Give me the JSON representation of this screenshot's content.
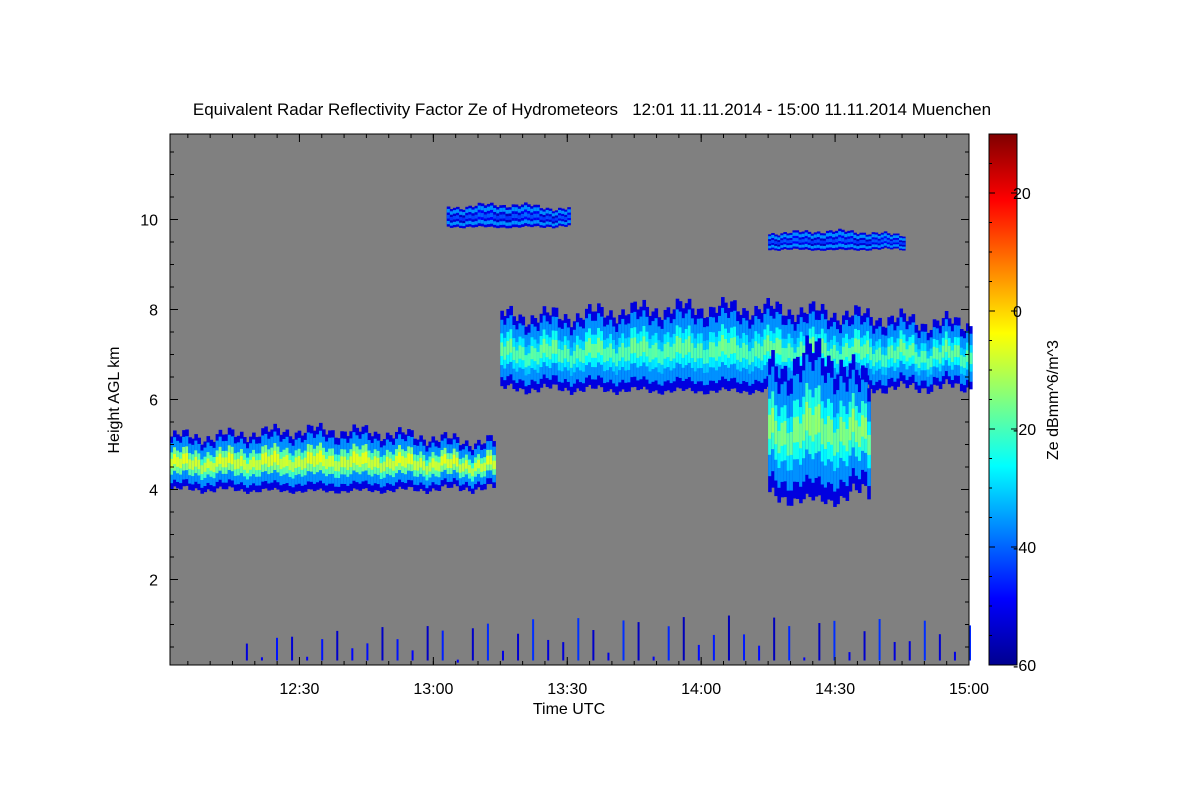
{
  "chart_data": {
    "type": "heatmap",
    "title": "Equivalent Radar Reflectivity Factor Ze of Hydrometeors   12:01 11.11.2014 - 15:00 11.11.2014 Muenchen",
    "xlabel": "Time UTC",
    "ylabel": "Height AGL km",
    "colorbar_label": "Ze dBmm^6/m^3",
    "xlim": [
      12.0167,
      15.0
    ],
    "ylim": [
      0.1,
      11.9
    ],
    "x_ticks": [
      {
        "value": 12.5,
        "label": "12:30"
      },
      {
        "value": 13.0,
        "label": "13:00"
      },
      {
        "value": 13.5,
        "label": "13:30"
      },
      {
        "value": 14.0,
        "label": "14:00"
      },
      {
        "value": 14.5,
        "label": "14:30"
      },
      {
        "value": 15.0,
        "label": "15:00"
      }
    ],
    "y_ticks": [
      {
        "value": 2,
        "label": "2"
      },
      {
        "value": 4,
        "label": "4"
      },
      {
        "value": 6,
        "label": "6"
      },
      {
        "value": 8,
        "label": "8"
      },
      {
        "value": 10,
        "label": "10"
      }
    ],
    "colorbar_range": [
      -60,
      30
    ],
    "colorbar_ticks": [
      {
        "value": 20,
        "label": "20"
      },
      {
        "value": 0,
        "label": "0"
      },
      {
        "value": -20,
        "label": "-20"
      },
      {
        "value": -40,
        "label": "-40"
      },
      {
        "value": -60,
        "label": "-60"
      }
    ],
    "colormap": [
      "#00008f",
      "#0000ff",
      "#0080ff",
      "#00ffff",
      "#80ff80",
      "#ffff00",
      "#ff8000",
      "#ff0000",
      "#800000"
    ],
    "background_color": "#808080",
    "layers": [
      {
        "name": "lower-cloud-band",
        "t_start": 12.0167,
        "t_end": 13.22,
        "base_km": 3.9,
        "top_km": 5.5,
        "peak_dBZ": -8
      },
      {
        "name": "upper-cloud-band",
        "t_start": 13.25,
        "t_end": 15.0,
        "base_km": 6.1,
        "top_km": 8.3,
        "peak_dBZ": -18
      },
      {
        "name": "fallstreak",
        "t_start": 14.25,
        "t_end": 14.62,
        "base_km": 3.6,
        "top_km": 7.5,
        "peak_dBZ": -15
      },
      {
        "name": "cirrus-10km",
        "t_start": 13.05,
        "t_end": 13.5,
        "base_km": 9.8,
        "top_km": 10.4,
        "peak_dBZ": -42
      },
      {
        "name": "cirrus-9.5km",
        "t_start": 14.25,
        "t_end": 14.75,
        "base_km": 9.3,
        "top_km": 9.8,
        "peak_dBZ": -42
      },
      {
        "name": "near-ground-clutter",
        "t_start": 12.3,
        "t_end": 15.0,
        "base_km": 0.2,
        "top_km": 1.2,
        "peak_dBZ": -50
      }
    ]
  }
}
